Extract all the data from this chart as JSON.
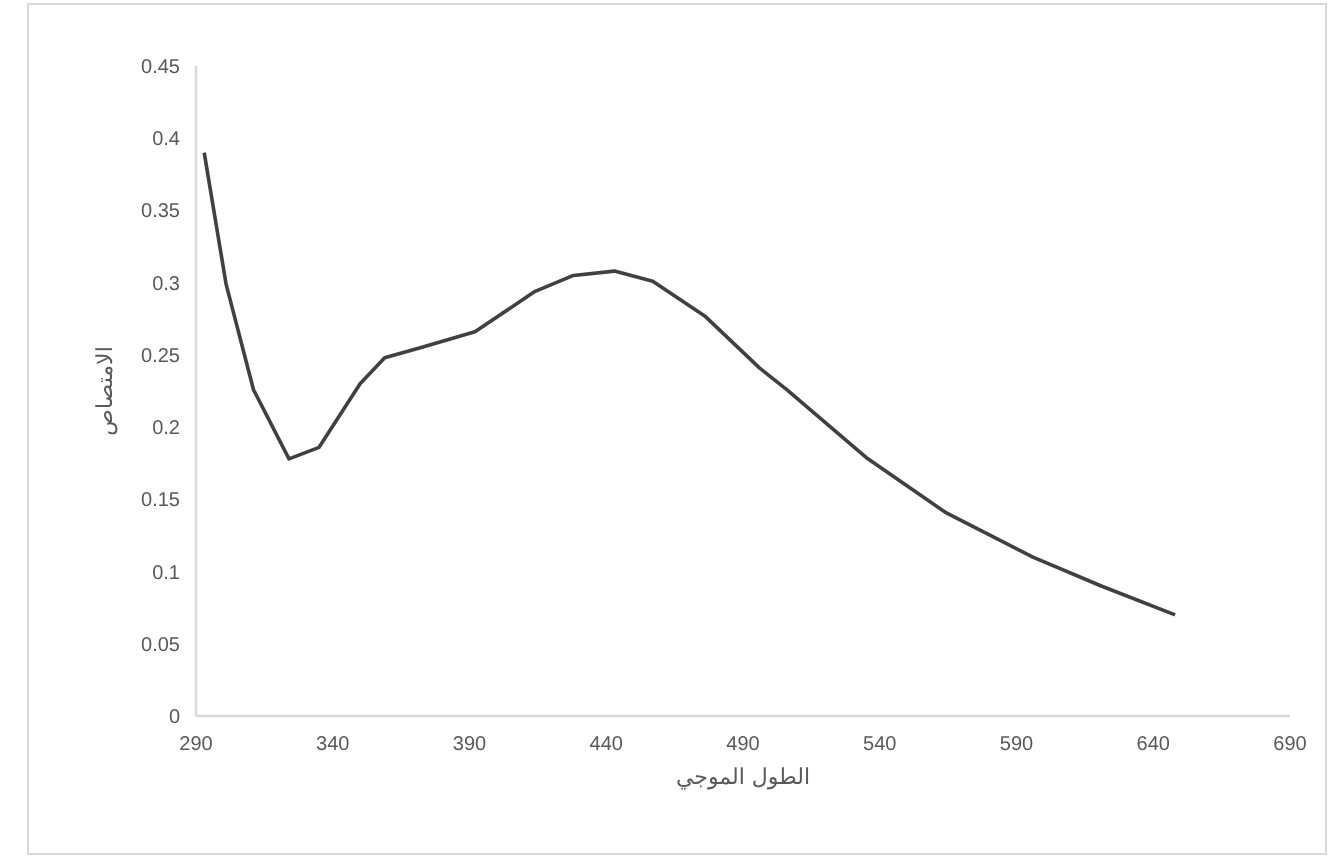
{
  "chart_data": {
    "type": "line",
    "xlabel": "الطول الموجي",
    "ylabel": "الامتصاص",
    "x": [
      293,
      301,
      311,
      324,
      335,
      350,
      359,
      372,
      392,
      414,
      428,
      443,
      457,
      476,
      496,
      506,
      535,
      564,
      596,
      621,
      648
    ],
    "series": [
      {
        "color": "#404040",
        "values": [
          0.39,
          0.299,
          0.226,
          0.178,
          0.186,
          0.23,
          0.248,
          0.255,
          0.266,
          0.294,
          0.305,
          0.308,
          0.301,
          0.277,
          0.241,
          0.226,
          0.179,
          0.141,
          0.11,
          0.09,
          0.07
        ]
      }
    ],
    "xlim": [
      290,
      690
    ],
    "xticks": [
      290,
      340,
      390,
      440,
      490,
      540,
      590,
      640,
      690
    ],
    "ylim": [
      0,
      0.45
    ],
    "yticks": [
      0,
      0.05,
      0.1,
      0.15,
      0.2,
      0.25,
      0.3,
      0.35,
      0.4,
      0.45
    ],
    "grid": false,
    "marker": "none",
    "line_style": "solid"
  }
}
